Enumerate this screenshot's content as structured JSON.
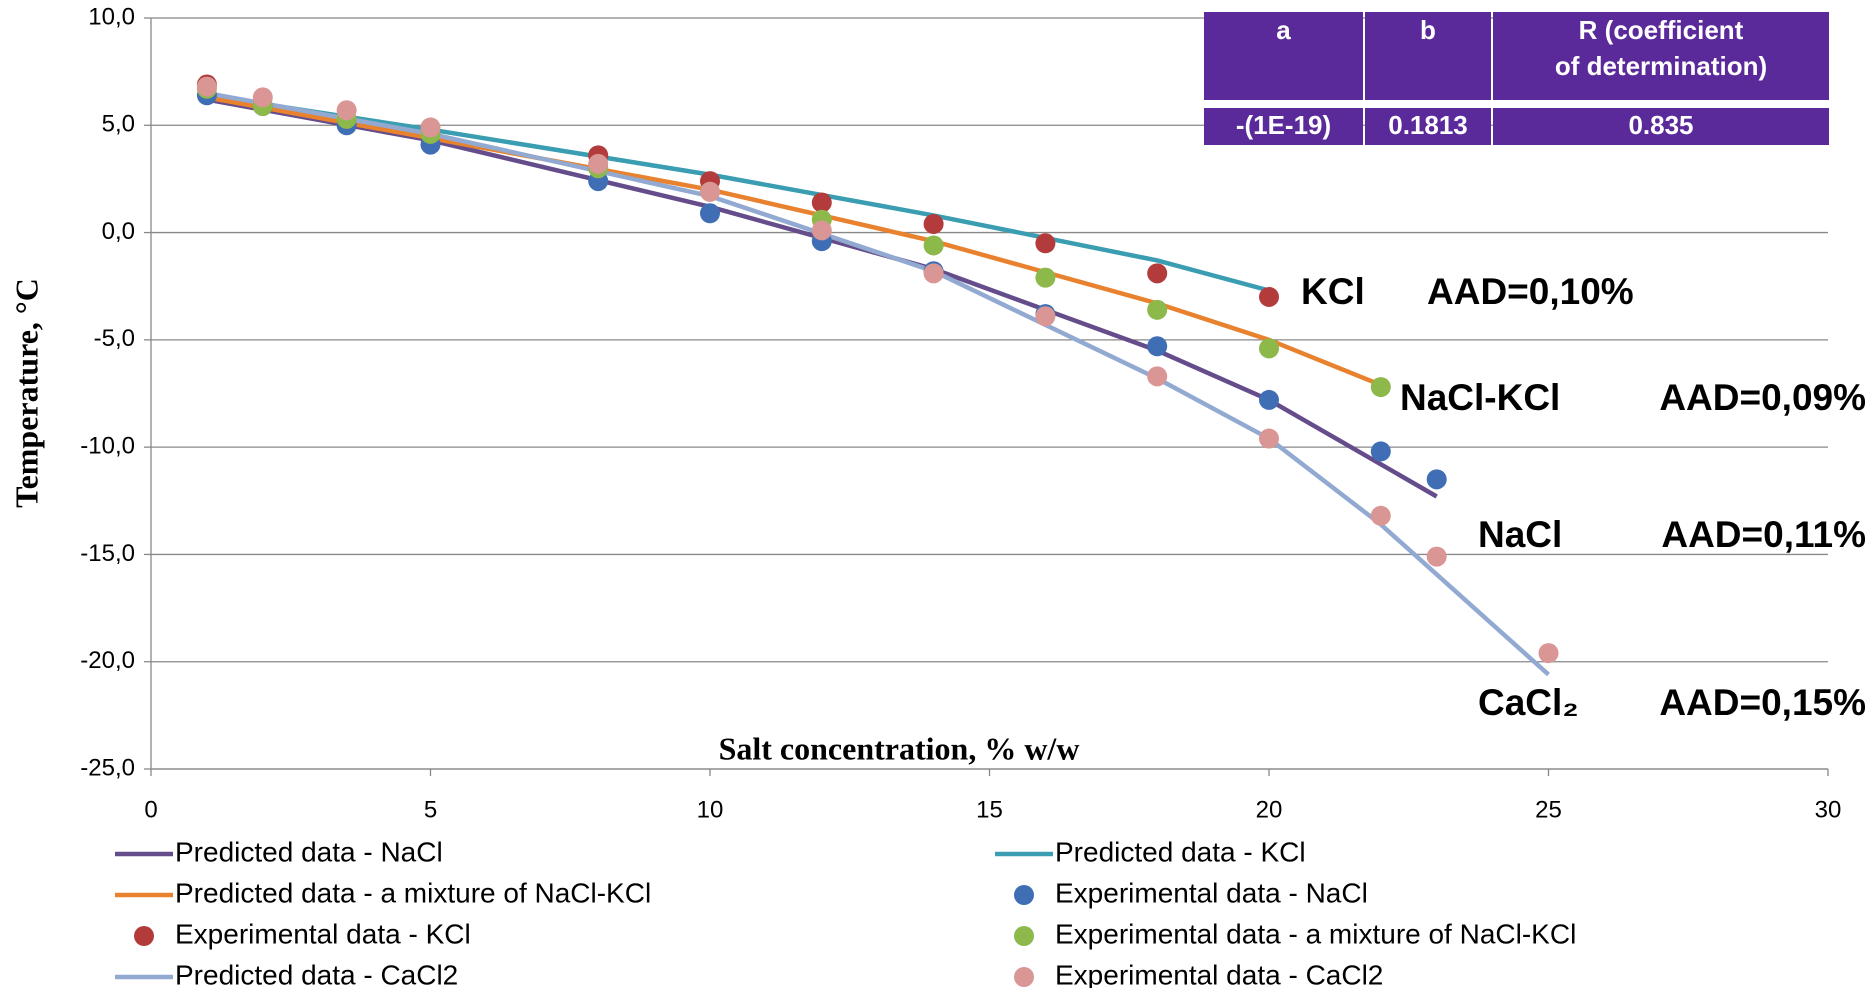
{
  "chart_data": {
    "type": "line",
    "xlabel": "Salt concentration, % w/w",
    "ylabel": "Temperature, °C",
    "xlim": [
      0,
      30
    ],
    "xticks": [
      0,
      5,
      10,
      15,
      20,
      25,
      30
    ],
    "ylim": [
      -25,
      10
    ],
    "yticks": [
      {
        "value": -25,
        "label": "-25,0"
      },
      {
        "value": -20,
        "label": "-20,0"
      },
      {
        "value": -15,
        "label": "-15,0"
      },
      {
        "value": -10,
        "label": "-10,0"
      },
      {
        "value": -5,
        "label": "-5,0"
      },
      {
        "value": 0,
        "label": "0,0"
      },
      {
        "value": 5,
        "label": "5,0"
      },
      {
        "value": 10,
        "label": "10,0"
      }
    ],
    "grid": true,
    "legend": "bottom",
    "series": [
      {
        "name": "Predicted data -  NaCl",
        "kind": "line",
        "color": "#654c8b",
        "x": [
          1,
          5,
          10,
          14,
          18,
          20,
          23
        ],
        "values": [
          6.2,
          4.3,
          1.2,
          -1.7,
          -5.5,
          -7.8,
          -12.3
        ]
      },
      {
        "name": "Predicted data - KCl",
        "kind": "line",
        "color": "#3a9db1",
        "x": [
          1,
          5,
          10,
          14,
          18,
          20
        ],
        "values": [
          6.4,
          4.8,
          2.7,
          0.8,
          -1.3,
          -2.7
        ]
      },
      {
        "name": "Predicted data - a mixture of NaCl-KCl",
        "kind": "line",
        "color": "#e8822e",
        "x": [
          1,
          5,
          10,
          14,
          18,
          20,
          22
        ],
        "values": [
          6.3,
          4.4,
          2.0,
          -0.4,
          -3.3,
          -5.0,
          -7.1
        ]
      },
      {
        "name": "Experimental data - NaCl",
        "kind": "markers",
        "color": "#3f6eb5",
        "x": [
          1,
          2,
          3.5,
          5,
          8,
          10,
          12,
          14,
          16,
          18,
          20,
          22,
          23
        ],
        "values": [
          6.4,
          5.9,
          5.0,
          4.1,
          2.4,
          0.9,
          -0.4,
          -1.8,
          -3.8,
          -5.3,
          -7.8,
          -10.2,
          -11.5
        ]
      },
      {
        "name": "Experimental data - KCl",
        "kind": "markers",
        "color": "#b33b3b",
        "x": [
          1,
          8,
          10,
          12,
          14,
          16,
          18,
          20
        ],
        "values": [
          6.9,
          3.6,
          2.4,
          1.4,
          0.4,
          -0.5,
          -1.9,
          -3.0
        ]
      },
      {
        "name": "Experimental data - a mixture of NaCl-KCl",
        "kind": "markers",
        "color": "#8db84a",
        "x": [
          1,
          2,
          3.5,
          5,
          8,
          10,
          12,
          14,
          16,
          18,
          20,
          22
        ],
        "values": [
          6.7,
          5.9,
          5.3,
          4.6,
          3.0,
          1.9,
          0.6,
          -0.6,
          -2.1,
          -3.6,
          -5.4,
          -7.2
        ]
      },
      {
        "name": "Predicted data - CaCl2",
        "kind": "line",
        "color": "#92a9d1",
        "x": [
          1,
          5,
          10,
          14,
          18,
          20,
          22,
          25
        ],
        "values": [
          6.5,
          4.6,
          1.7,
          -1.8,
          -6.8,
          -9.6,
          -13.6,
          -20.6
        ]
      },
      {
        "name": "Experimental data - CaCl2",
        "kind": "markers",
        "color": "#d99694",
        "x": [
          1,
          2,
          3.5,
          5,
          8,
          10,
          12,
          14,
          16,
          18,
          20,
          22,
          23,
          25
        ],
        "values": [
          6.8,
          6.3,
          5.7,
          4.9,
          3.2,
          1.9,
          0.1,
          -1.9,
          -3.9,
          -6.7,
          -9.6,
          -13.2,
          -15.1,
          -19.6
        ]
      }
    ],
    "annotations": [
      {
        "salt": "KCl",
        "aad": "AAD=0,10%"
      },
      {
        "salt": "NaCl-KCl",
        "aad": "AAD=0,09%"
      },
      {
        "salt": "NaCl",
        "aad": "AAD=0,11%"
      },
      {
        "salt": "CaCl₂",
        "aad": "AAD=0,15%"
      }
    ],
    "table": {
      "header": [
        "a",
        "b",
        "R (coefficient of determination)"
      ],
      "row": [
        "-(1E-19)",
        "0.1813",
        "0.835"
      ]
    }
  }
}
